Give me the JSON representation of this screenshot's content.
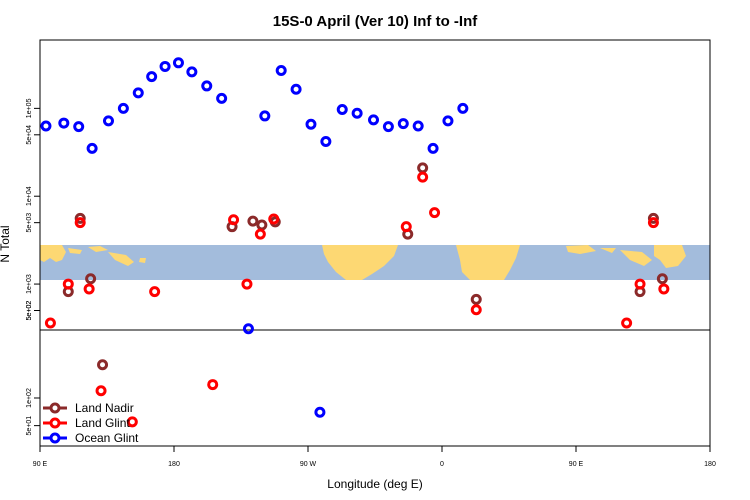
{
  "chart_data": {
    "type": "scatter",
    "title": "15S-0 April (Ver 10)   Inf to -Inf",
    "xlabel": "Longitude (deg E)",
    "ylabel": "N Total",
    "x_tick_labels": [
      "90 E",
      "180",
      "90 W",
      "0",
      "90 E",
      "180"
    ],
    "y_tick_labels_upper": [
      "1e+05",
      "5e+04",
      "1e+04",
      "5e+03",
      "1e+03",
      "5e+02"
    ],
    "y_tick_labels_lower": [
      "5e+02",
      "1e+02",
      "5e+01"
    ],
    "y_scale": "log",
    "legend": {
      "placement": "bottom-left",
      "entries": [
        "Land Nadir",
        "Land Glint",
        "Ocean Glint"
      ]
    },
    "series": [
      {
        "name": "Land Nadir",
        "color": "#8b2a2a",
        "points": [
          {
            "x": 109,
            "y": 820
          },
          {
            "x": 117,
            "y": 5600
          },
          {
            "x": 124,
            "y": 1150
          },
          {
            "x": 132,
            "y": 230
          },
          {
            "x": 219,
            "y": 4500
          },
          {
            "x": 233,
            "y": 5200
          },
          {
            "x": 239,
            "y": 4700
          },
          {
            "x": 248,
            "y": 5100
          },
          {
            "x": 337,
            "y": 3700
          },
          {
            "x": 347,
            "y": 21000
          },
          {
            "x": 383,
            "y": 670
          },
          {
            "x": 493,
            "y": 820
          },
          {
            "x": 502,
            "y": 5600
          },
          {
            "x": 508,
            "y": 1150
          },
          {
            "x": 585,
            "y": 230
          }
        ]
      },
      {
        "name": "Land Glint",
        "color": "#ff0000",
        "points": [
          {
            "x": 97,
            "y": 360
          },
          {
            "x": 109,
            "y": 1000
          },
          {
            "x": 117,
            "y": 5000
          },
          {
            "x": 123,
            "y": 880
          },
          {
            "x": 131,
            "y": 120
          },
          {
            "x": 152,
            "y": 55
          },
          {
            "x": 167,
            "y": 820
          },
          {
            "x": 206,
            "y": 140
          },
          {
            "x": 220,
            "y": 5400
          },
          {
            "x": 229,
            "y": 1000
          },
          {
            "x": 238,
            "y": 3700
          },
          {
            "x": 247,
            "y": 5500
          },
          {
            "x": 336,
            "y": 4500
          },
          {
            "x": 347,
            "y": 16500
          },
          {
            "x": 355,
            "y": 6500
          },
          {
            "x": 383,
            "y": 510
          },
          {
            "x": 484,
            "y": 360
          },
          {
            "x": 493,
            "y": 1000
          },
          {
            "x": 502,
            "y": 5000
          },
          {
            "x": 509,
            "y": 880
          },
          {
            "x": 588,
            "y": 120
          }
        ]
      },
      {
        "name": "Ocean Glint",
        "color": "#0000ff",
        "points": [
          {
            "x": 94,
            "y": 63000
          },
          {
            "x": 106,
            "y": 68000
          },
          {
            "x": 116,
            "y": 62000
          },
          {
            "x": 125,
            "y": 35000
          },
          {
            "x": 136,
            "y": 72000
          },
          {
            "x": 146,
            "y": 100000
          },
          {
            "x": 156,
            "y": 150000
          },
          {
            "x": 165,
            "y": 230000
          },
          {
            "x": 174,
            "y": 300000
          },
          {
            "x": 183,
            "y": 330000
          },
          {
            "x": 192,
            "y": 260000
          },
          {
            "x": 202,
            "y": 180000
          },
          {
            "x": 212,
            "y": 130000
          },
          {
            "x": 241,
            "y": 82000
          },
          {
            "x": 252,
            "y": 270000
          },
          {
            "x": 262,
            "y": 165000
          },
          {
            "x": 272,
            "y": 66000
          },
          {
            "x": 282,
            "y": 42000
          },
          {
            "x": 293,
            "y": 97000
          },
          {
            "x": 303,
            "y": 88000
          },
          {
            "x": 314,
            "y": 74000
          },
          {
            "x": 324,
            "y": 62000
          },
          {
            "x": 334,
            "y": 67000
          },
          {
            "x": 344,
            "y": 63000
          },
          {
            "x": 354,
            "y": 35000
          },
          {
            "x": 364,
            "y": 72000
          },
          {
            "x": 374,
            "y": 100000
          },
          {
            "x": 230,
            "y": 310
          },
          {
            "x": 278,
            "y": 70
          }
        ]
      }
    ]
  }
}
